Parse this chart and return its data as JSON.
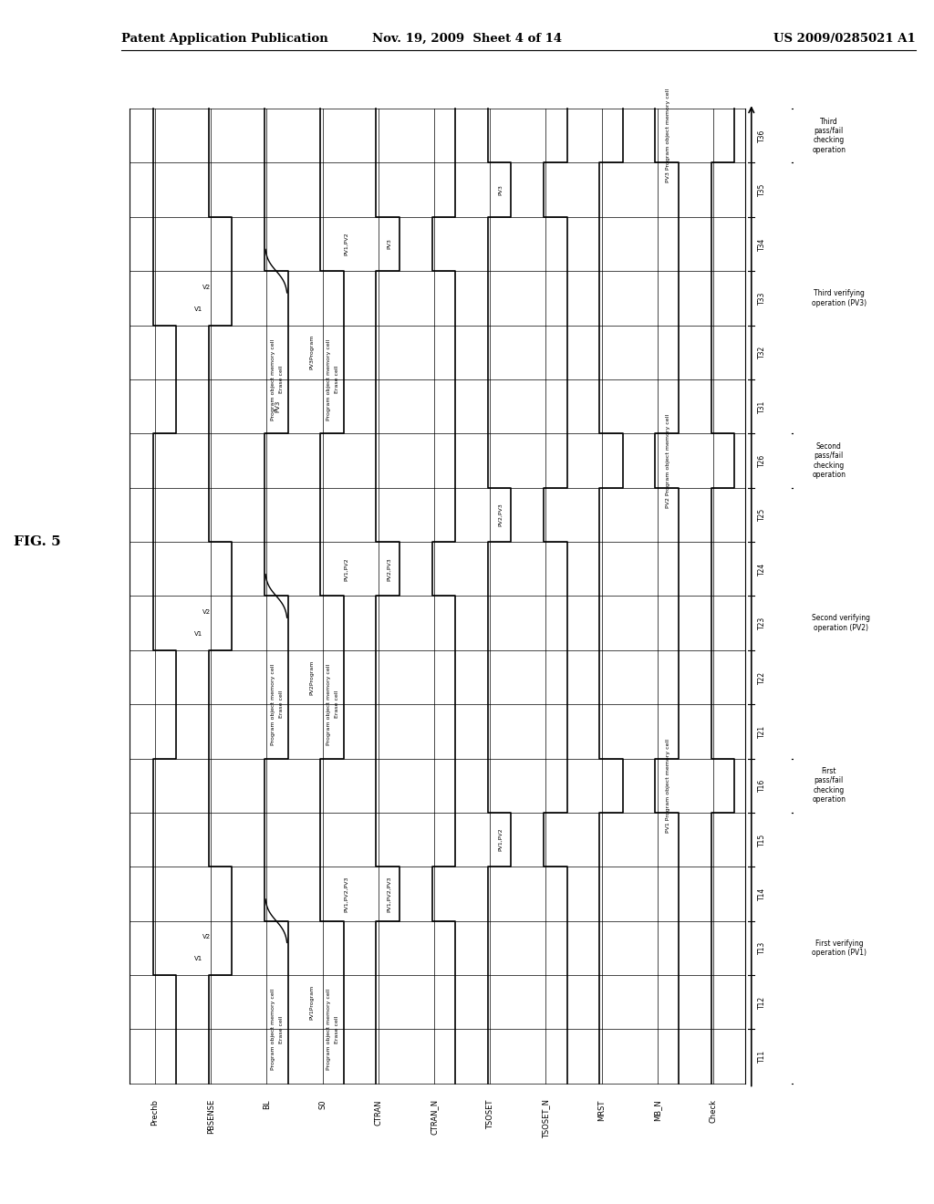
{
  "title_left": "Patent Application Publication",
  "title_mid": "Nov. 19, 2009  Sheet 4 of 14",
  "title_right": "US 2009/0285021 A1",
  "fig_label": "FIG. 5",
  "signal_names": [
    "Prechb",
    "PBSENSE",
    "BL",
    "S0",
    "CTRAN",
    "CTRAN_N",
    "TSOSET",
    "TSOSET_N",
    "MRST",
    "MB_N",
    "Check"
  ],
  "time_labels": [
    "T11",
    "T12",
    "T13",
    "T14",
    "T15",
    "T16",
    "T21",
    "T22",
    "T23",
    "T24",
    "T25",
    "T26",
    "T31",
    "T32",
    "T33",
    "T34",
    "T35",
    "T36"
  ],
  "background_color": "#ffffff",
  "line_color": "#000000"
}
